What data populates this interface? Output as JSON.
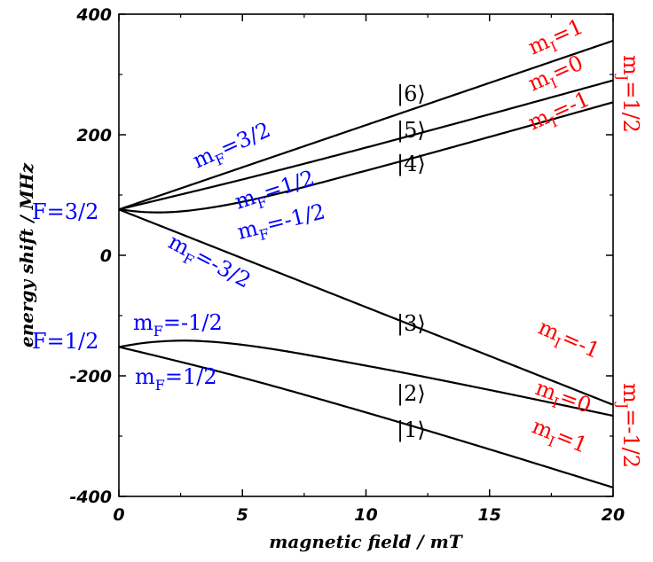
{
  "chart_data": {
    "type": "line",
    "title": "",
    "xlabel": "magnetic field / mT",
    "ylabel": "energy shift / MHz",
    "xlim": [
      0,
      20
    ],
    "ylim": [
      -400,
      400
    ],
    "xticks": [
      "0",
      "5",
      "10",
      "15",
      "20"
    ],
    "yticks": [
      "400",
      "200",
      "0",
      "-200",
      "-400"
    ],
    "grid": false,
    "colors": {
      "curve": "#000000",
      "mF_labels": "#0000ff",
      "m_labels": "#ff0000"
    },
    "hyperfine": {
      "F32": 76,
      "F12": -152,
      "hfs": 228
    },
    "series": [
      {
        "label": "|6⟩",
        "x": [
          0,
          5,
          10,
          15,
          20
        ],
        "y": [
          76,
          146,
          216,
          286,
          356
        ]
      },
      {
        "label": "|5⟩",
        "x": [
          0,
          2,
          5,
          10,
          15,
          20
        ],
        "y": [
          76,
          95.8,
          125.8,
          178.7,
          233.9,
          290.2
        ]
      },
      {
        "label": "|4⟩",
        "x": [
          0,
          1,
          2,
          3,
          5,
          10,
          15,
          20
        ],
        "y": [
          76,
          71.8,
          71.5,
          74.9,
          88.7,
          140.4,
          196.4,
          253.9
        ]
      },
      {
        "label": "|3⟩",
        "x": [
          0,
          5,
          10,
          15,
          20
        ],
        "y": [
          76,
          -5,
          -86,
          -167,
          -248
        ]
      },
      {
        "label": "|2⟩",
        "x": [
          0,
          1,
          2,
          3,
          5,
          10,
          15,
          20
        ],
        "y": [
          -152,
          -145.5,
          -142.2,
          -141.8,
          -148.5,
          -183.1,
          -223.4,
          -266.2
        ]
      },
      {
        "label": "|1⟩",
        "x": [
          0,
          2,
          5,
          10,
          15,
          20
        ],
        "y": [
          -152,
          -171.8,
          -203,
          -260.7,
          -321.9,
          -385.2
        ]
      }
    ],
    "annotations": [
      {
        "id": "state-6",
        "main": "|6⟩",
        "sub": "",
        "tail": "",
        "color": "black"
      },
      {
        "id": "state-5",
        "main": "|5⟩",
        "sub": "",
        "tail": "",
        "color": "black"
      },
      {
        "id": "state-4",
        "main": "|4⟩",
        "sub": "",
        "tail": "",
        "color": "black"
      },
      {
        "id": "state-3",
        "main": "|3⟩",
        "sub": "",
        "tail": "",
        "color": "black"
      },
      {
        "id": "state-2",
        "main": "|2⟩",
        "sub": "",
        "tail": "",
        "color": "black"
      },
      {
        "id": "state-1",
        "main": "|1⟩",
        "sub": "",
        "tail": "",
        "color": "black"
      },
      {
        "id": "F-3-2",
        "main": "F=3/2",
        "sub": "",
        "tail": "",
        "color": "blue"
      },
      {
        "id": "F-1-2",
        "main": "F=1/2",
        "sub": "",
        "tail": "",
        "color": "blue"
      },
      {
        "id": "mF-3-2-upper",
        "main": "m",
        "sub": "F",
        "tail": "=3/2",
        "color": "blue"
      },
      {
        "id": "mF-1-2-upper",
        "main": "m",
        "sub": "F",
        "tail": "=1/2",
        "color": "blue"
      },
      {
        "id": "mF-neg-1-2-upper",
        "main": "m",
        "sub": "F",
        "tail": "=-1/2",
        "color": "blue"
      },
      {
        "id": "mF-neg-3-2-upper",
        "main": "m",
        "sub": "F",
        "tail": "=-3/2",
        "color": "blue"
      },
      {
        "id": "mF-neg-1-2-lower",
        "main": "m",
        "sub": "F",
        "tail": "=-1/2",
        "color": "blue"
      },
      {
        "id": "mF-1-2-lower",
        "main": "m",
        "sub": "F",
        "tail": "=1/2",
        "color": "blue"
      },
      {
        "id": "mI-1-upper",
        "main": "m",
        "sub": "I",
        "tail": "=1",
        "color": "red"
      },
      {
        "id": "mI-0-upper",
        "main": "m",
        "sub": "I",
        "tail": "=0",
        "color": "red"
      },
      {
        "id": "mI-neg-1-upper",
        "main": "m",
        "sub": "I",
        "tail": "=-1",
        "color": "red"
      },
      {
        "id": "mI-neg-1-lower",
        "main": "m",
        "sub": "I",
        "tail": "=-1",
        "color": "red"
      },
      {
        "id": "mI-0-lower",
        "main": "m",
        "sub": "I",
        "tail": "=0",
        "color": "red"
      },
      {
        "id": "mI-1-lower",
        "main": "m",
        "sub": "I",
        "tail": "=1",
        "color": "red"
      },
      {
        "id": "mJ-1-2",
        "main": "m",
        "sub": "J",
        "tail": "=1/2",
        "color": "red"
      },
      {
        "id": "mJ-neg-1-2",
        "main": "m",
        "sub": "J",
        "tail": "=-1/2",
        "color": "red"
      }
    ]
  }
}
